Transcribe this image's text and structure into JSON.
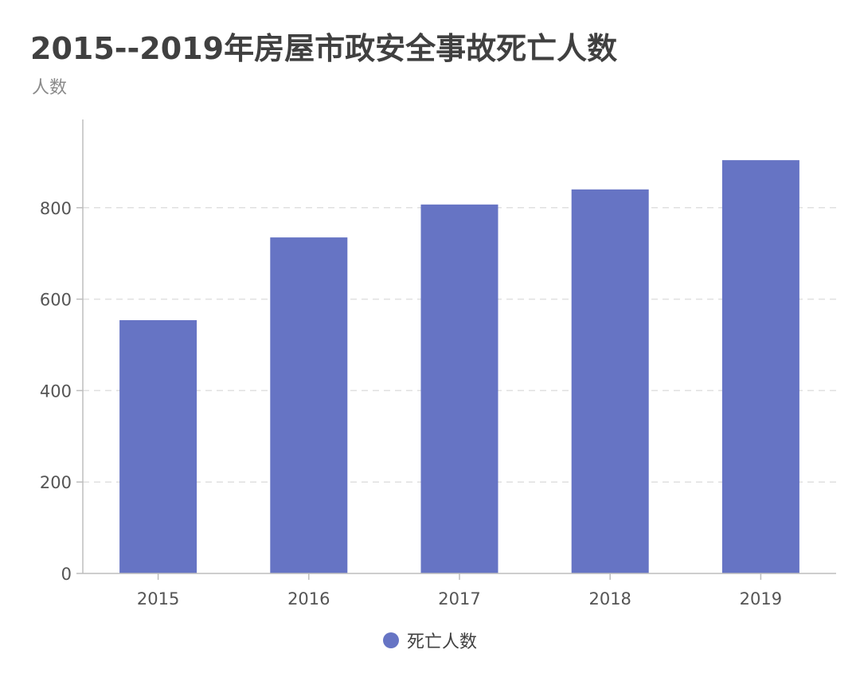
{
  "title": "2015--2019年房屋市政安全事故死亡人数",
  "y_unit": "人数",
  "colors": {
    "bar": "#6674c4",
    "axis": "#bdbdbd",
    "grid": "#e0e0e0",
    "tick_text": "#555555"
  },
  "chart_data": {
    "type": "bar",
    "categories": [
      "2015",
      "2016",
      "2017",
      "2018",
      "2019"
    ],
    "series": [
      {
        "name": "死亡人数",
        "values": [
          554,
          735,
          807,
          840,
          904
        ]
      }
    ],
    "yticks": [
      "0",
      "200",
      "400",
      "600",
      "800"
    ],
    "ylim": [
      0,
      1000
    ],
    "grid": true,
    "legend": "bottom-center"
  },
  "legend": {
    "items": [
      {
        "label": "死亡人数",
        "color": "#6674c4"
      }
    ]
  }
}
